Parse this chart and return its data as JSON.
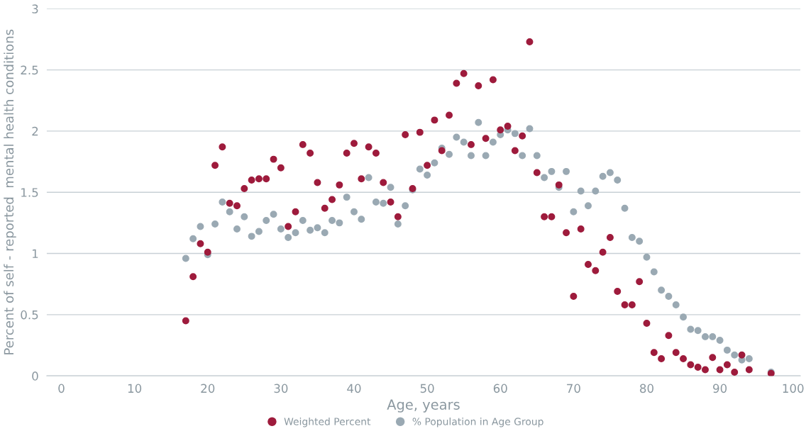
{
  "chart_data": {
    "type": "scatter",
    "xlabel": "Age, years",
    "ylabel": "Percent of self - reported  mental health conditions",
    "x": [
      17,
      18,
      19,
      20,
      21,
      22,
      23,
      24,
      25,
      26,
      27,
      28,
      29,
      30,
      31,
      32,
      33,
      34,
      35,
      36,
      37,
      38,
      39,
      40,
      41,
      42,
      43,
      44,
      45,
      46,
      47,
      48,
      49,
      50,
      51,
      52,
      53,
      54,
      55,
      56,
      57,
      58,
      59,
      60,
      61,
      62,
      63,
      64,
      65,
      66,
      67,
      68,
      69,
      70,
      71,
      72,
      73,
      74,
      75,
      76,
      77,
      78,
      79,
      80,
      81,
      82,
      83,
      84,
      85,
      86,
      87,
      88,
      89,
      90,
      91,
      92,
      93,
      94,
      97
    ],
    "series": [
      {
        "name": "Weighted Percent",
        "color": "#9e1b3c",
        "values": [
          0.45,
          0.81,
          1.08,
          1.01,
          1.72,
          1.87,
          1.41,
          1.39,
          1.53,
          1.6,
          1.61,
          1.61,
          1.77,
          1.7,
          1.22,
          1.34,
          1.89,
          1.82,
          1.58,
          1.37,
          1.44,
          1.56,
          1.82,
          1.9,
          1.61,
          1.87,
          1.82,
          1.58,
          1.42,
          1.3,
          1.97,
          1.53,
          1.99,
          1.72,
          2.09,
          1.84,
          2.13,
          2.39,
          2.47,
          1.89,
          2.37,
          1.94,
          2.42,
          2.01,
          2.04,
          1.84,
          1.96,
          2.73,
          1.66,
          1.3,
          1.3,
          1.56,
          1.17,
          0.65,
          1.2,
          0.91,
          0.86,
          1.01,
          1.13,
          0.69,
          0.58,
          0.58,
          0.77,
          0.43,
          0.19,
          0.14,
          0.33,
          0.19,
          0.14,
          0.09,
          0.07,
          0.05,
          0.15,
          0.05,
          0.09,
          0.03,
          0.17,
          0.05,
          0.02
        ]
      },
      {
        "name": "% Population in Age Group",
        "color": "#9aa9b3",
        "values": [
          0.96,
          1.12,
          1.22,
          0.99,
          1.24,
          1.42,
          1.34,
          1.2,
          1.3,
          1.14,
          1.18,
          1.27,
          1.32,
          1.2,
          1.13,
          1.17,
          1.27,
          1.19,
          1.21,
          1.17,
          1.27,
          1.25,
          1.46,
          1.34,
          1.28,
          1.62,
          1.42,
          1.41,
          1.54,
          1.24,
          1.39,
          1.52,
          1.69,
          1.64,
          1.74,
          1.86,
          1.81,
          1.95,
          1.91,
          1.8,
          2.07,
          1.8,
          1.91,
          1.97,
          2.01,
          1.98,
          1.8,
          2.02,
          1.8,
          1.62,
          1.67,
          1.54,
          1.67,
          1.34,
          1.51,
          1.39,
          1.51,
          1.63,
          1.66,
          1.6,
          1.37,
          1.13,
          1.1,
          0.97,
          0.85,
          0.7,
          0.65,
          0.58,
          0.48,
          0.38,
          0.37,
          0.32,
          0.32,
          0.29,
          0.21,
          0.17,
          0.13,
          0.14,
          0.03
        ]
      }
    ],
    "xlim": [
      -2,
      101
    ],
    "xticks": [
      0,
      10,
      20,
      30,
      40,
      50,
      60,
      70,
      80,
      90,
      100
    ],
    "ylim": [
      0,
      3
    ],
    "yticks": [
      0,
      0.5,
      1,
      1.5,
      2,
      2.5,
      3
    ],
    "grid": "y",
    "legend": "bottom",
    "marker": "circle"
  }
}
